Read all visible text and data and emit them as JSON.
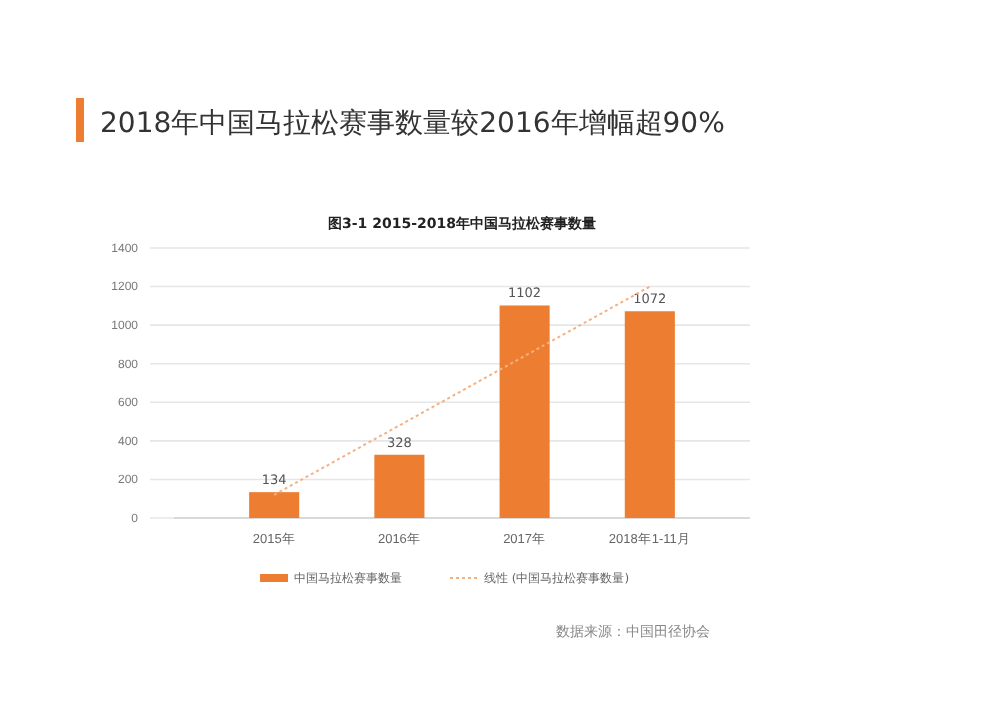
{
  "chart_data": {
    "type": "bar",
    "title": "2018年中国马拉松赛事数量较2016年增幅超90%",
    "subtitle": "图3-1 2015-2018年中国马拉松赛事数量",
    "categories": [
      "2015年",
      "2016年",
      "2017年",
      "2018年1-11月"
    ],
    "series": [
      {
        "name": "中国马拉松赛事数量",
        "color": "#ed7d31",
        "values": [
          134,
          328,
          1102,
          1072
        ],
        "value_labels": [
          "134",
          "328",
          "1102",
          "1072"
        ]
      },
      {
        "name": "线性 (中国马拉松赛事数量)",
        "type": "line",
        "color": "#f4b183",
        "line_style": "dotted",
        "values": [
          120,
          480,
          840,
          1200
        ]
      }
    ],
    "ylim": [
      0,
      1400
    ],
    "yticks": [
      0,
      200,
      400,
      600,
      800,
      1000,
      1200,
      1400
    ],
    "grid": "y",
    "legend": "bottom",
    "marker": "none",
    "annotations": [
      "数据来源：中国田径协会"
    ]
  }
}
